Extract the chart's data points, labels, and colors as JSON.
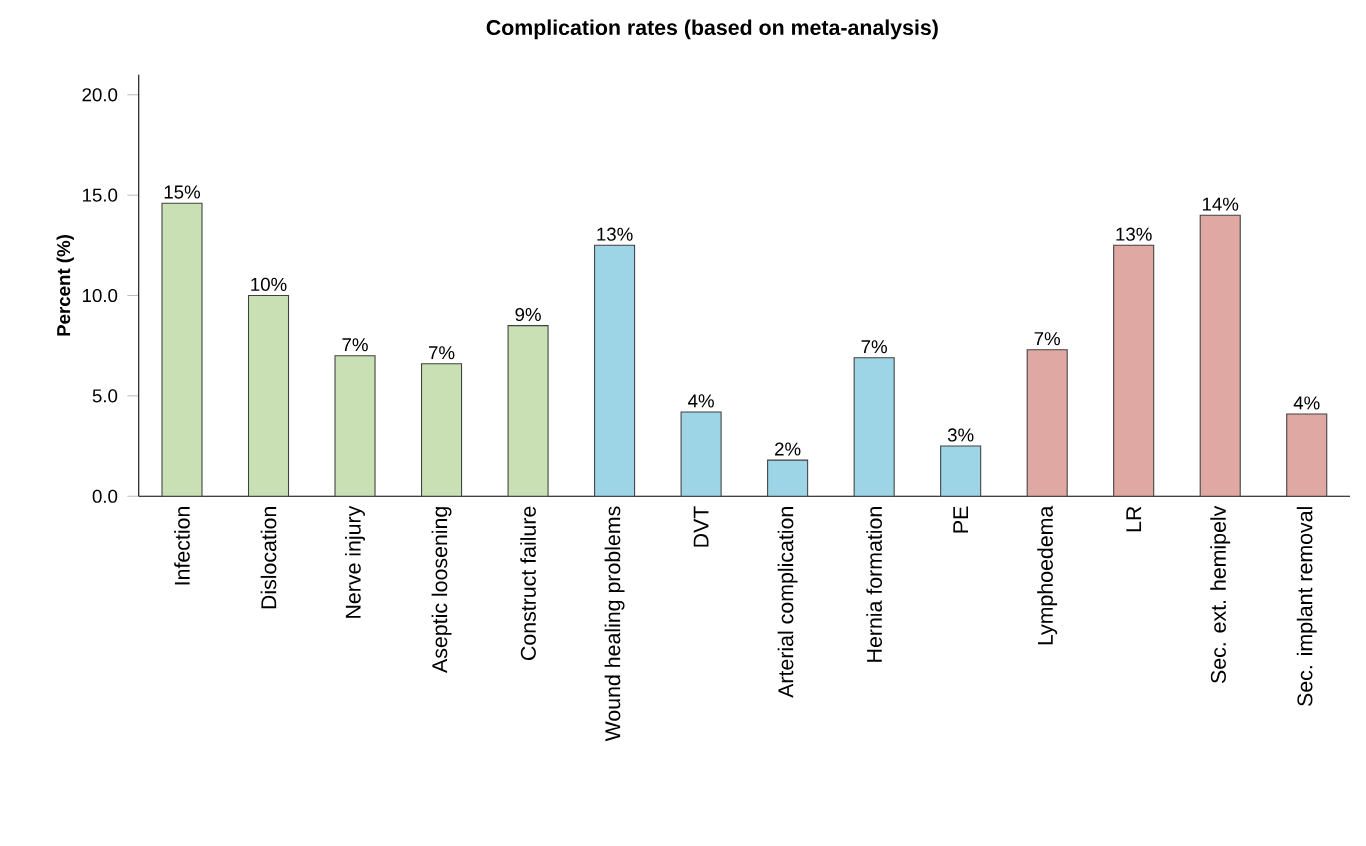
{
  "chart_data": {
    "type": "bar",
    "title": "Complication rates (based on meta-analysis)",
    "ylabel": "Percent (%)",
    "categories": [
      "Infection",
      "Dislocation",
      "Nerve injury",
      "Aseptic loosening",
      "Construct failure",
      "Wound healing problems",
      "DVT",
      "Arterial complication",
      "Hernia formation",
      "PE",
      "Lymphoedema",
      "LR",
      "Sec. ext. hemipelv",
      "Sec. implant removal"
    ],
    "values": [
      14.6,
      10.0,
      7.0,
      6.6,
      8.5,
      12.5,
      4.2,
      1.8,
      6.9,
      2.5,
      7.3,
      12.5,
      14.0,
      4.1
    ],
    "value_labels": [
      "15%",
      "10%",
      "7%",
      "7%",
      "9%",
      "13%",
      "4%",
      "2%",
      "7%",
      "3%",
      "7%",
      "13%",
      "14%",
      "4%"
    ],
    "colors": [
      "#c8e0b4",
      "#c8e0b4",
      "#c8e0b4",
      "#c8e0b4",
      "#c8e0b4",
      "#9dd5e6",
      "#9dd5e6",
      "#9dd5e6",
      "#9dd5e6",
      "#9dd5e6",
      "#e0a8a2",
      "#e0a8a2",
      "#e0a8a2",
      "#e0a8a2"
    ],
    "ylim": [
      0,
      21
    ],
    "yticks": [
      {
        "value": 0,
        "label": "0.0"
      },
      {
        "value": 5,
        "label": "5.0"
      },
      {
        "value": 10,
        "label": "10.0"
      },
      {
        "value": 15,
        "label": "15.0"
      },
      {
        "value": 20,
        "label": "20.0"
      }
    ],
    "grid": false
  }
}
